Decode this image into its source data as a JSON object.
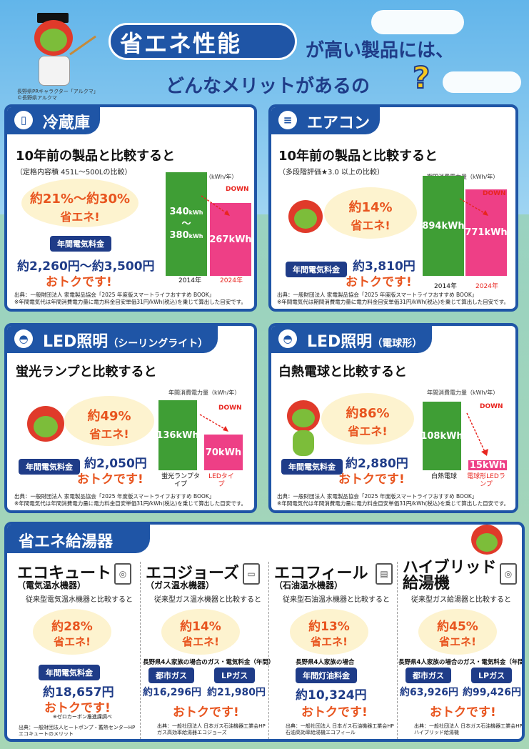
{
  "header": {
    "title": "省エネ性能",
    "line1": "が高い製品には、",
    "line2": "どんなメリットがあるの",
    "qmark": "?",
    "credit1": "長野県PRキャラクター「アルクマ」",
    "credit2": "©長野県アルクマ"
  },
  "cards": [
    {
      "title": "冷蔵庫",
      "icon": "fridge-icon",
      "icon_glyph": "▯",
      "compare": "10年前の製品と比較すると",
      "condition": "（定格内容積 451L～500Lの比較）",
      "saving_a": "約21%～約30%",
      "saving_b": "省エネ!",
      "label": "年間電気料金",
      "price": "約2,260円～約3,500円",
      "otoku": "おトクです!",
      "chart_title": "年間消費電力量（kWh/年）",
      "down": "DOWN",
      "source1": "出典：一般財団法人 家電製品協会「2025 年度版スマートライフおすすめ BOOK」",
      "source2": "※年間電気代は年間消費電力量に電力料金目安単価31円/kWh(税込)を乗じて算出した目安です。"
    },
    {
      "title": "エアコン",
      "icon": "aircon-icon",
      "icon_glyph": "≡",
      "compare": "10年前の製品と比較すると",
      "condition": "（多段階評価★3.0 以上の比較）",
      "saving_a": "約14%",
      "saving_b": "省エネ!",
      "label": "年間電気料金",
      "price": "約3,810円",
      "otoku": "おトクです!",
      "chart_title": "期間消費電力量（kWh/年）",
      "down": "DOWN",
      "source1": "出典：一般財団法人 家電製品協会「2025 年度版スマートライフおすすめ BOOK」",
      "source2": "※年間電気代は期間消費電力量に電力料金目安単価31円/kWh(税込)を乗じて算出した目安です。"
    },
    {
      "title": "LED照明",
      "title_sub": "（シーリングライト）",
      "icon": "ceiling-light-icon",
      "icon_glyph": "◓",
      "compare": "蛍光ランプと比較すると",
      "saving_a": "約49%",
      "saving_b": "省エネ!",
      "label": "年間電気料金",
      "price": "約2,050円",
      "otoku": "おトクです!",
      "chart_title": "年間消費電力量（kWh/年）",
      "down": "DOWN",
      "source1": "出典：一般財団法人 家電製品協会「2025 年度版スマートライフおすすめ BOOK」",
      "source2": "※年間電気代は年間消費電力量に電力料金目安単価31円/kWh(税込)を乗じて算出した目安です。"
    },
    {
      "title": "LED照明",
      "title_sub": "（電球形）",
      "icon": "bulb-icon",
      "icon_glyph": "◓",
      "compare": "白熱電球と比較すると",
      "saving_a": "約86%",
      "saving_b": "省エネ!",
      "label": "年間電気料金",
      "price": "約2,880円",
      "otoku": "おトクです!",
      "chart_title": "年間消費電力量（kWh/年）",
      "down": "DOWN",
      "source1": "出典：一般財団法人 家電製品協会「2025 年度版スマートライフおすすめ BOOK」",
      "source2": "※年間電気代は年間消費電力量に電力料金目安単価31円/kWh(税込)を乗じて算出した目安です。"
    }
  ],
  "chart_data": [
    {
      "type": "bar",
      "title": "年間消費電力量（kWh/年）",
      "categories": [
        "2014年",
        "2024年"
      ],
      "values": [
        380,
        267
      ],
      "labels": [
        "340kWh～380kWh",
        "267kWh"
      ],
      "colors": [
        "#3f9e35",
        "#ee3f86"
      ]
    },
    {
      "type": "bar",
      "title": "期間消費電力量（kWh/年）",
      "categories": [
        "2014年",
        "2024年"
      ],
      "values": [
        894,
        771
      ],
      "labels": [
        "894kWh",
        "771kWh"
      ],
      "colors": [
        "#3f9e35",
        "#ee3f86"
      ]
    },
    {
      "type": "bar",
      "title": "年間消費電力量（kWh/年）",
      "categories": [
        "蛍光ランプタイプ",
        "LEDタイプ"
      ],
      "values": [
        136,
        70
      ],
      "labels": [
        "136kWh",
        "70kWh"
      ],
      "colors": [
        "#3f9e35",
        "#ee3f86"
      ]
    },
    {
      "type": "bar",
      "title": "年間消費電力量（kWh/年）",
      "categories": [
        "白熱電球",
        "電球形LEDランプ"
      ],
      "values": [
        108,
        15
      ],
      "labels": [
        "108kWh",
        "15kWh"
      ],
      "colors": [
        "#3f9e35",
        "#ee3f86"
      ]
    }
  ],
  "water_heaters": {
    "title": "省エネ給湯器",
    "items": [
      {
        "title": "エコキュート",
        "sub": "（電気温水機器）",
        "compare": "従来型電気温水機器と比較すると",
        "saving_a": "約28%",
        "saving_b": "省エネ!",
        "note": "",
        "labels": [
          "年間電気料金"
        ],
        "prices": [
          "約18,657円"
        ],
        "otoku": "おトクです!",
        "foot": "※ゼロカーボン推進課調べ",
        "source1": "出典：一般財団法人ヒートポンプ・蓄熱センターHP",
        "source2": "エコキュートのメリット"
      },
      {
        "title": "エコジョーズ",
        "sub": "（ガス温水機器）",
        "compare": "従来型ガス温水機器と比較すると",
        "saving_a": "約14%",
        "saving_b": "省エネ!",
        "note": "長野県4人家族の場合のガス・電気料金（年間）",
        "labels": [
          "都市ガス",
          "LPガス"
        ],
        "prices": [
          "約16,296円",
          "約21,980円"
        ],
        "otoku": "おトクです!",
        "source1": "出典：一般社団法人 日本ガス石油機器工業会HP",
        "source2": "ガス高効率給湯器エコジョーズ"
      },
      {
        "title": "エコフィール",
        "sub": "（石油温水機器）",
        "compare": "従来型石油温水機器と比較すると",
        "saving_a": "約13%",
        "saving_b": "省エネ!",
        "note": "長野県4人家族の場合",
        "labels": [
          "年間灯油料金"
        ],
        "prices": [
          "約10,324円"
        ],
        "otoku": "おトクです!",
        "source1": "出典：一般社団法人 日本ガス石油機器工業会HP",
        "source2": "石油高効率給湯機エコフィール"
      },
      {
        "title": "ハイブリッド",
        "title2": "給湯機",
        "compare": "従来型ガス給湯器と比較すると",
        "saving_a": "約45%",
        "saving_b": "省エネ!",
        "note": "長野県4人家族の場合のガス・電気料金（年間）",
        "labels": [
          "都市ガス",
          "LPガス"
        ],
        "prices": [
          "約63,926円",
          "約99,426円"
        ],
        "otoku": "おトクです!",
        "source1": "出典：一般社団法人 日本ガス石油機器工業会HP",
        "source2": "ハイブリッド給湯機"
      }
    ]
  },
  "colors": {
    "navy": "#1f55a6",
    "green": "#3f9e35",
    "pink": "#ee3f86",
    "orange": "#e8551f"
  }
}
